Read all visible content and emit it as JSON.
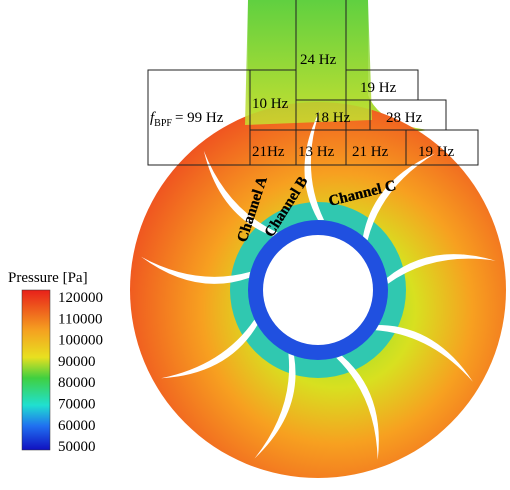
{
  "legend": {
    "title": "Pressure  [Pa]",
    "ticks": [
      120000,
      110000,
      100000,
      90000,
      80000,
      70000,
      60000,
      50000
    ]
  },
  "channels": [
    "Channel A",
    "Channel B",
    "Channel C"
  ],
  "frequencies": {
    "symbol": "f",
    "subscript": "BPF",
    "value": "= 99 Hz",
    "boxes": [
      "24 Hz",
      "19 Hz",
      "10 Hz",
      "18 Hz",
      "28 Hz",
      "21Hz",
      "13 Hz",
      "21 Hz",
      "19 Hz"
    ]
  }
}
